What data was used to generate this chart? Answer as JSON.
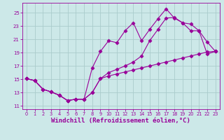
{
  "background_color": "#cce8e8",
  "grid_color": "#aacccc",
  "line_color": "#990099",
  "xlabel": "Windchill (Refroidissement éolien,°C)",
  "xlabel_fontsize": 6.5,
  "xlim": [
    -0.5,
    23.5
  ],
  "ylim": [
    10.5,
    26.5
  ],
  "yticks": [
    11,
    13,
    15,
    17,
    19,
    21,
    23,
    25
  ],
  "xticks": [
    0,
    1,
    2,
    3,
    4,
    5,
    6,
    7,
    8,
    9,
    10,
    11,
    12,
    13,
    14,
    15,
    16,
    17,
    18,
    19,
    20,
    21,
    22,
    23
  ],
  "line1_x": [
    0,
    1,
    2,
    3,
    4,
    5,
    6,
    7,
    8,
    9,
    10,
    11,
    12,
    13,
    14,
    15,
    16,
    17,
    18,
    19,
    20,
    21,
    22,
    23
  ],
  "line1_y": [
    15.1,
    14.8,
    13.5,
    13.1,
    12.6,
    11.8,
    12.0,
    12.0,
    13.0,
    15.1,
    15.5,
    15.8,
    16.1,
    16.4,
    16.7,
    17.0,
    17.3,
    17.6,
    17.9,
    18.2,
    18.5,
    18.8,
    19.1,
    19.2
  ],
  "line2_x": [
    0,
    1,
    2,
    3,
    4,
    5,
    6,
    7,
    8,
    9,
    10,
    11,
    12,
    13,
    14,
    15,
    16,
    17,
    18,
    19,
    20,
    21,
    22,
    23
  ],
  "line2_y": [
    15.1,
    14.8,
    13.5,
    13.1,
    12.6,
    11.8,
    12.0,
    12.0,
    16.7,
    19.2,
    20.8,
    20.5,
    22.3,
    23.5,
    20.8,
    22.5,
    24.1,
    25.6,
    24.2,
    23.5,
    23.3,
    22.3,
    20.6,
    19.2
  ],
  "line3_x": [
    0,
    1,
    2,
    3,
    4,
    5,
    6,
    7,
    8,
    9,
    10,
    11,
    12,
    13,
    14,
    15,
    16,
    17,
    18,
    19,
    20,
    21,
    22,
    23
  ],
  "line3_y": [
    15.1,
    14.8,
    13.5,
    13.1,
    12.6,
    11.8,
    12.0,
    12.0,
    13.0,
    15.1,
    16.0,
    16.5,
    17.0,
    17.6,
    18.5,
    20.8,
    22.5,
    24.2,
    24.3,
    23.5,
    22.3,
    22.3,
    18.8,
    19.2
  ]
}
